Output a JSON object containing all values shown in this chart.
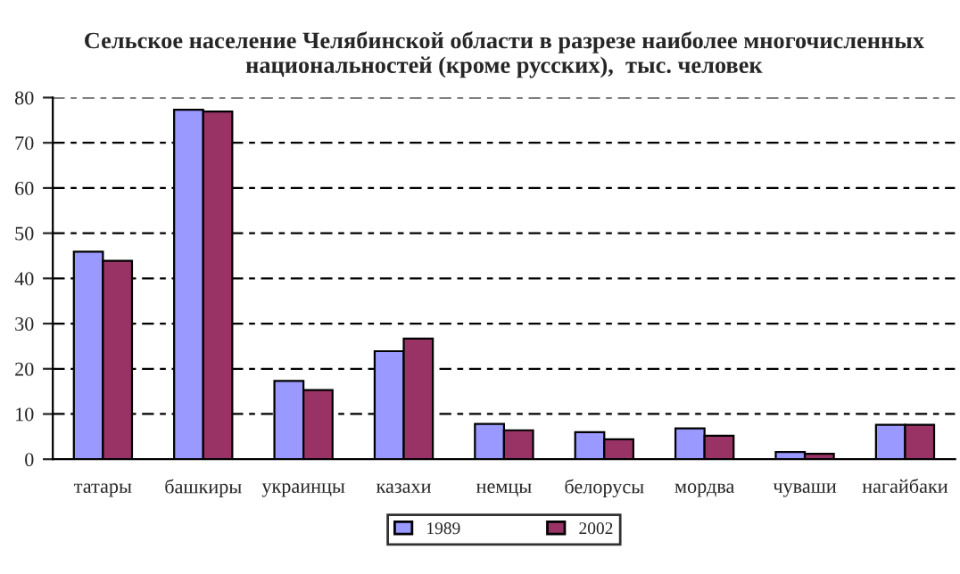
{
  "chart_data": {
    "type": "bar",
    "title": "Сельское население Челябинской области в разрезе наиболее многочисленных\nнациональностей (кроме русских),  тыс. человек",
    "categories": [
      "татары",
      "башкиры",
      "украинцы",
      "казахи",
      "немцы",
      "белорусы",
      "мордва",
      "чуваши",
      "нагайбаки"
    ],
    "series": [
      {
        "name": "1989",
        "color": "#9999ff",
        "values": [
          45.9,
          77.3,
          17.3,
          23.9,
          7.8,
          6.0,
          6.8,
          1.6,
          7.6
        ]
      },
      {
        "name": "2002",
        "color": "#993366",
        "values": [
          43.9,
          76.9,
          15.3,
          26.7,
          6.4,
          4.4,
          5.2,
          1.2,
          7.6
        ]
      }
    ],
    "ylim": [
      0,
      80
    ],
    "yticks": [
      0,
      10,
      20,
      30,
      40,
      50,
      60,
      70,
      80
    ],
    "grid": "y",
    "legend": "bottom"
  }
}
